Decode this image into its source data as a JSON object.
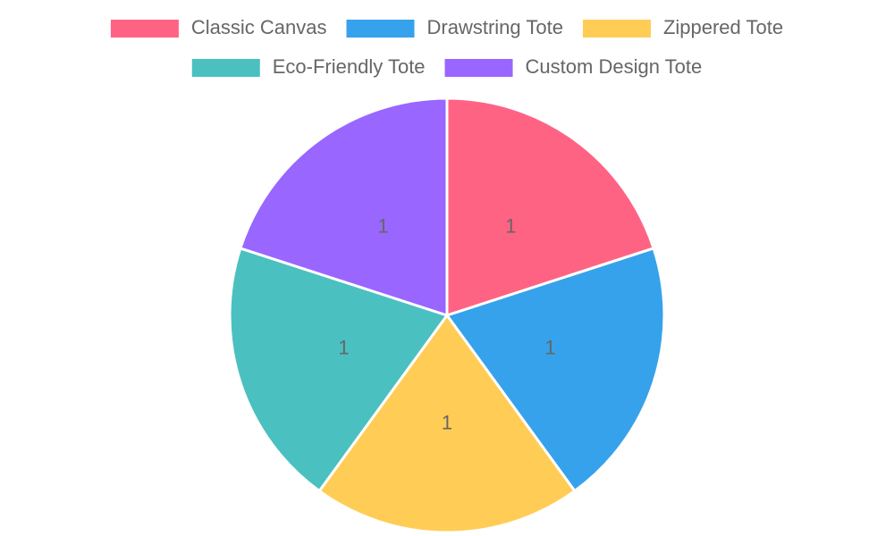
{
  "chart_data": {
    "type": "pie",
    "categories": [
      "Classic Canvas",
      "Drawstring Tote",
      "Zippered Tote",
      "Eco-Friendly Tote",
      "Custom Design Tote"
    ],
    "values": [
      1,
      1,
      1,
      1,
      1
    ],
    "colors": [
      "#ff6384",
      "#36a2eb",
      "#ffcd56",
      "#4bc0c0",
      "#9966ff"
    ],
    "legend": "top"
  }
}
